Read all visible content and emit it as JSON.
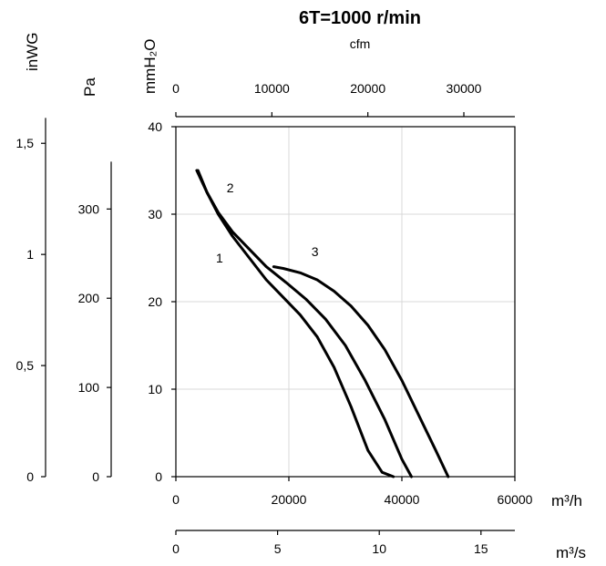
{
  "chart_data": {
    "type": "line",
    "title": "6T=1000 r/min",
    "x_unit_main": "m³/h",
    "x_unit_ms": "m³/s",
    "x_unit_cfm": "cfm",
    "y_unit_mmh2o": "mmH₂O",
    "y_unit_pa": "Pa",
    "y_unit_inwg": "inWG",
    "xlim": [
      0,
      60000
    ],
    "ylim": [
      0,
      40
    ],
    "grid": true,
    "x_ticks": [
      "0",
      "20000",
      "40000",
      "60000"
    ],
    "y_ticks": [
      "0",
      "10",
      "20",
      "30",
      "40"
    ],
    "ms_ticks": [
      "0",
      "5",
      "10",
      "15"
    ],
    "cfm_ticks": [
      "0",
      "10000",
      "20000",
      "30000"
    ],
    "pa_ticks": [
      "0",
      "100",
      "200",
      "300"
    ],
    "inwg_ticks": [
      "0",
      "0,5",
      "1",
      "1,5"
    ],
    "series": [
      {
        "name": "1",
        "x": [
          3700,
          5500,
          7500,
          10000,
          13000,
          16000,
          19000,
          22000,
          25000,
          28000,
          31000,
          34000,
          36500,
          38500
        ],
        "y": [
          35,
          32.5,
          30,
          27.5,
          25,
          22.5,
          20.5,
          18.5,
          16,
          12.5,
          8,
          3,
          0.5,
          0
        ],
        "label_x": 7100,
        "label_y": 24.5
      },
      {
        "name": "2",
        "x": [
          3900,
          5500,
          7500,
          10000,
          13000,
          16000,
          19500,
          23000,
          26500,
          30000,
          33500,
          37000,
          40000,
          41700
        ],
        "y": [
          35,
          32.5,
          30.2,
          28,
          26,
          24,
          22.2,
          20.3,
          18,
          15,
          11,
          6.5,
          2,
          0
        ],
        "label_x": 9000,
        "label_y": 32.5
      },
      {
        "name": "3",
        "x": [
          17300,
          19000,
          22000,
          25000,
          28000,
          31000,
          34000,
          37000,
          40000,
          43000,
          46000,
          48200
        ],
        "y": [
          24,
          23.8,
          23.3,
          22.5,
          21.2,
          19.5,
          17.3,
          14.5,
          11,
          7,
          3,
          0
        ],
        "label_x": 24000,
        "label_y": 25.2
      }
    ]
  }
}
